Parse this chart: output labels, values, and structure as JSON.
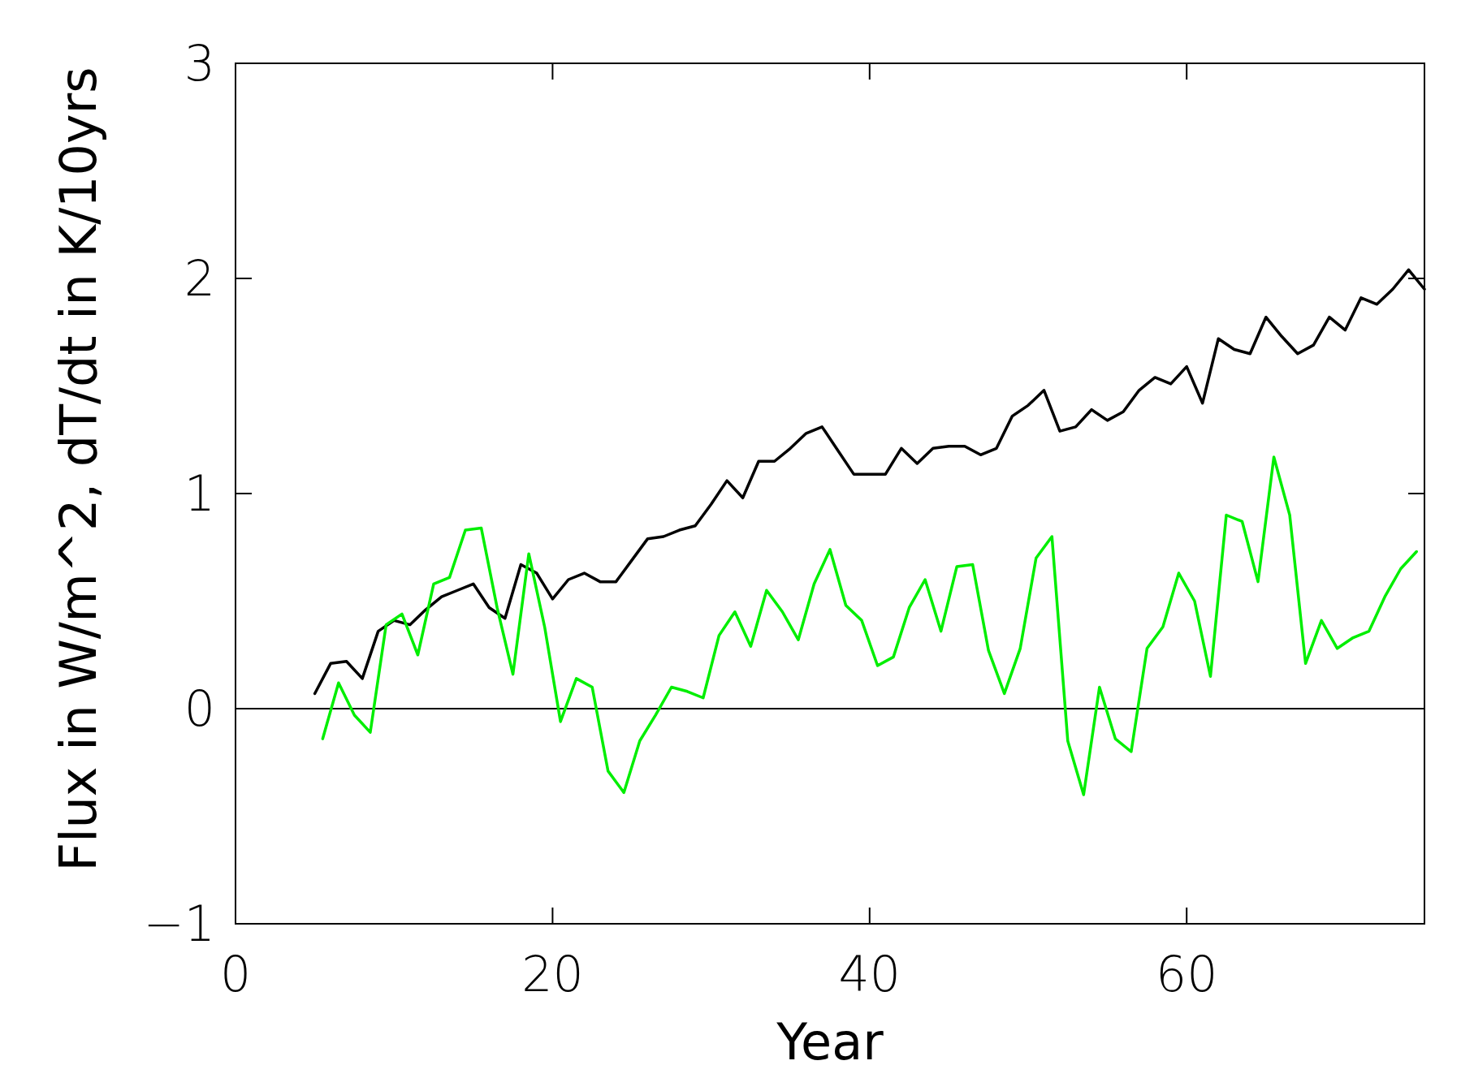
{
  "chart_data": {
    "type": "line",
    "xlabel": "Year",
    "ylabel": "Flux in W/m^2, dT/dt in K/10yrs",
    "xlim": [
      0,
      75
    ],
    "xticks": [
      0,
      20,
      40,
      60
    ],
    "ylim": [
      -1,
      3
    ],
    "yticks": [
      {
        "value": -1,
        "label": "−1"
      },
      0,
      1,
      2,
      3
    ],
    "marker": "none",
    "line_style": "solid",
    "ref_lines": [
      {
        "axis": "y",
        "value": 0,
        "color": "#000000"
      }
    ],
    "series": [
      {
        "color": "#000000",
        "x": [
          5,
          6,
          7,
          8,
          9,
          10,
          11,
          12,
          13,
          14,
          15,
          16,
          17,
          18,
          19,
          20,
          21,
          22,
          23,
          24,
          25,
          26,
          27,
          28,
          29,
          30,
          31,
          32,
          33,
          34,
          35,
          36,
          37,
          38,
          39,
          40,
          41,
          42,
          43,
          44,
          45,
          46,
          47,
          48,
          49,
          50,
          51,
          52,
          53,
          54,
          55,
          56,
          57,
          58,
          59,
          60,
          61,
          62,
          63,
          64,
          65,
          66,
          67,
          68,
          69,
          70,
          71,
          72,
          73,
          74,
          75
        ],
        "values": [
          0.07,
          0.21,
          0.22,
          0.14,
          0.36,
          0.41,
          0.39,
          0.46,
          0.52,
          0.55,
          0.58,
          0.47,
          0.42,
          0.67,
          0.63,
          0.51,
          0.6,
          0.63,
          0.59,
          0.59,
          0.69,
          0.79,
          0.8,
          0.83,
          0.85,
          0.95,
          1.06,
          0.98,
          1.15,
          1.15,
          1.21,
          1.28,
          1.31,
          1.2,
          1.09,
          1.09,
          1.09,
          1.21,
          1.14,
          1.21,
          1.22,
          1.22,
          1.18,
          1.21,
          1.36,
          1.41,
          1.48,
          1.29,
          1.31,
          1.39,
          1.34,
          1.38,
          1.48,
          1.54,
          1.51,
          1.59,
          1.42,
          1.72,
          1.67,
          1.65,
          1.82,
          1.73,
          1.65,
          1.69,
          1.82,
          1.76,
          1.91,
          1.88,
          1.95,
          2.04,
          1.95
        ]
      },
      {
        "color": "#00ee00",
        "x": [
          5.5,
          6.5,
          7.5,
          8.5,
          9.5,
          10.5,
          11.5,
          12.5,
          13.5,
          14.5,
          15.5,
          16.5,
          17.5,
          18.5,
          19.5,
          20.5,
          21.5,
          22.5,
          23.5,
          24.5,
          25.5,
          26.5,
          27.5,
          28.5,
          29.5,
          30.5,
          31.5,
          32.5,
          33.5,
          34.5,
          35.5,
          36.5,
          37.5,
          38.5,
          39.5,
          40.5,
          41.5,
          42.5,
          43.5,
          44.5,
          45.5,
          46.5,
          47.5,
          48.5,
          49.5,
          50.5,
          51.5,
          52.5,
          53.5,
          54.5,
          55.5,
          56.5,
          57.5,
          58.5,
          59.5,
          60.5,
          61.5,
          62.5,
          63.5,
          64.5,
          65.5,
          66.5,
          67.5,
          68.5,
          69.5,
          70.5,
          71.5,
          72.5,
          73.5,
          74.5
        ],
        "values": [
          -0.14,
          0.12,
          -0.03,
          -0.11,
          0.39,
          0.44,
          0.25,
          0.58,
          0.61,
          0.83,
          0.84,
          0.47,
          0.16,
          0.72,
          0.38,
          -0.06,
          0.14,
          0.1,
          -0.29,
          -0.39,
          -0.15,
          -0.03,
          0.1,
          0.08,
          0.05,
          0.34,
          0.45,
          0.29,
          0.55,
          0.45,
          0.32,
          0.58,
          0.74,
          0.48,
          0.41,
          0.2,
          0.24,
          0.47,
          0.6,
          0.36,
          0.66,
          0.67,
          0.27,
          0.07,
          0.28,
          0.7,
          0.8,
          -0.15,
          -0.4,
          0.1,
          -0.14,
          -0.2,
          0.28,
          0.38,
          0.63,
          0.5,
          0.15,
          0.9,
          0.87,
          0.59,
          1.17,
          0.9,
          0.21,
          0.41,
          0.28,
          0.33,
          0.36,
          0.52,
          0.65,
          0.73
        ]
      }
    ]
  }
}
